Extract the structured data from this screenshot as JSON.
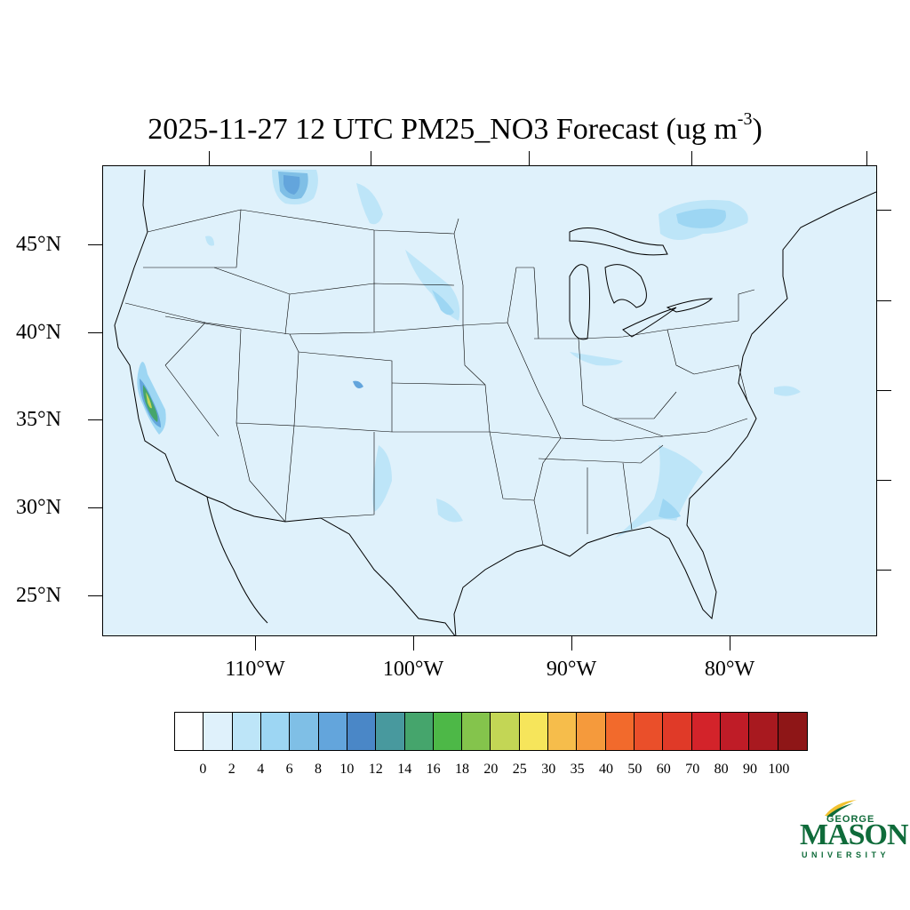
{
  "title": {
    "main": "2025-11-27 12 UTC PM25_NO3 Forecast (ug m",
    "superscript": "-3",
    "close": ")"
  },
  "map": {
    "projection": "Lambert conformal (CONUS)",
    "background_color": "#dff1fb",
    "lat_labels": [
      "45°N",
      "40°N",
      "35°N",
      "30°N",
      "25°N"
    ],
    "lon_labels": [
      "110°W",
      "100°W",
      "90°W",
      "80°W"
    ]
  },
  "colorbar": {
    "levels": [
      "0",
      "2",
      "4",
      "6",
      "8",
      "10",
      "12",
      "14",
      "16",
      "18",
      "20",
      "25",
      "30",
      "35",
      "40",
      "50",
      "60",
      "70",
      "80",
      "90",
      "100"
    ],
    "colors": [
      "#ffffff",
      "#dff1fb",
      "#bde5f8",
      "#9dd6f3",
      "#7fbfe6",
      "#63a5dc",
      "#4a87c7",
      "#48999e",
      "#45a56c",
      "#4db847",
      "#84c44c",
      "#c3d655",
      "#f6e55b",
      "#f6bd4b",
      "#f59a3c",
      "#f26a2c",
      "#ea4f2a",
      "#e03a28",
      "#d3232a",
      "#bf1c27",
      "#a8191f",
      "#8e1617"
    ]
  },
  "logo": {
    "line1": "GEORGE",
    "line2": "MASON",
    "line3": "UNIVERSITY",
    "color": "#0f6b3a",
    "accent": "#f2c230"
  }
}
